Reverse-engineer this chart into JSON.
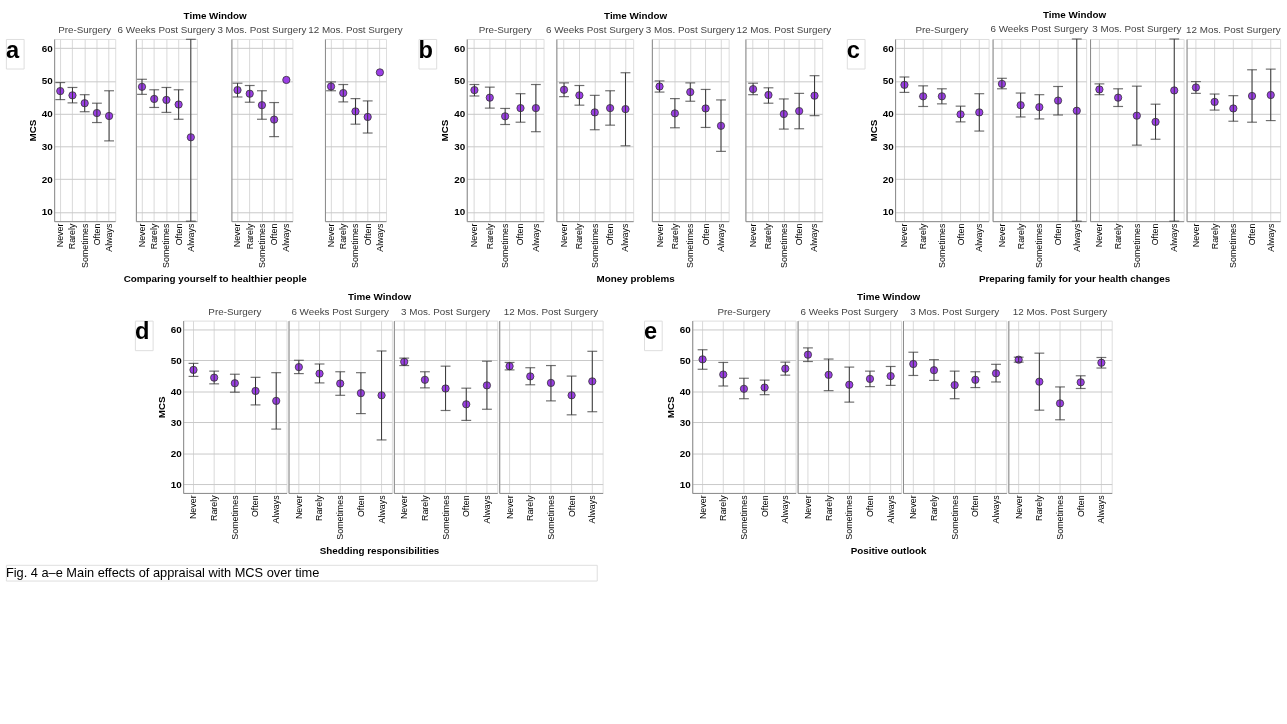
{
  "chart_data": [
    {
      "type": "scatter",
      "title": "Pre-Surgery",
      "ylabel": "MCS",
      "annotations": [
        "a",
        "Time Window",
        "Fig. 4 a–e Main effects of appraisal with MCS over time"
      ],
      "xlabel": "Comparing yourself to healthier people",
      "categories": [
        "Never",
        "Rarely",
        "Sometimes",
        "Often",
        "Always"
      ],
      "series": [
        {
          "color": "#9b3ee6",
          "values": [
            46.9,
            45.6,
            43.2,
            40.2,
            39.3
          ],
          "errors": [
            [
              44.3,
              49.5
            ],
            [
              43.3,
              48.0
            ],
            [
              40.6,
              45.8
            ],
            [
              37.3,
              43.2
            ],
            [
              31.7,
              47.0
            ]
          ]
        }
      ],
      "ylim": [
        7.2,
        62.8
      ],
      "yticks": [
        10,
        20,
        30,
        40,
        50,
        60
      ],
      "grid": true,
      "marker": "circle"
    },
    {
      "type": "scatter",
      "title": "6 Weeks Post Surgery",
      "categories": [
        "Never",
        "Rarely",
        "Sometimes",
        "Often",
        "Always"
      ],
      "series": [
        {
          "color": "#9b3ee6",
          "values": [
            48.2,
            44.5,
            44.2,
            42.8,
            32.8
          ],
          "errors": [
            [
              45.9,
              50.5
            ],
            [
              41.9,
              47.3
            ],
            [
              40.4,
              48.0
            ],
            [
              38.3,
              47.3
            ],
            [
              7.2,
              62.7
            ]
          ]
        }
      ],
      "ylim": [
        7.2,
        62.8
      ],
      "yticks": [
        10,
        20,
        30,
        40,
        50,
        60
      ],
      "grid": true,
      "marker": "circle",
      "tick_labels": "x"
    },
    {
      "type": "scatter",
      "title": "3 Mos. Post Surgery",
      "categories": [
        "Never",
        "Rarely",
        "Sometimes",
        "Often",
        "Always"
      ],
      "series": [
        {
          "color": "#9b3ee6",
          "values": [
            47.2,
            46.1,
            42.6,
            38.2,
            50.3
          ],
          "errors": [
            [
              45.1,
              49.3
            ],
            [
              43.5,
              48.6
            ],
            [
              38.3,
              47.0
            ],
            [
              33.0,
              43.4
            ],
            null
          ]
        }
      ],
      "ylim": [
        7.2,
        62.8
      ],
      "yticks": [
        10,
        20,
        30,
        40,
        50,
        60
      ],
      "grid": true,
      "marker": "circle",
      "tick_labels": "x"
    },
    {
      "type": "scatter",
      "title": "12 Mos. Post Surgery",
      "categories": [
        "Never",
        "Rarely",
        "Sometimes",
        "Often",
        "Always"
      ],
      "series": [
        {
          "color": "#9b3ee6",
          "values": [
            48.3,
            46.3,
            40.7,
            39.0,
            52.6
          ],
          "errors": [
            [
              47.0,
              49.7
            ],
            [
              43.6,
              48.9
            ],
            [
              36.8,
              44.6
            ],
            [
              34.1,
              43.9
            ],
            null
          ]
        }
      ],
      "ylim": [
        7.2,
        62.8
      ],
      "yticks": [
        10,
        20,
        30,
        40,
        50,
        60
      ],
      "grid": true,
      "marker": "circle",
      "tick_labels": "x"
    },
    {
      "type": "scatter",
      "title": "Pre-Surgery",
      "ylabel": "MCS",
      "annotations": [
        "b",
        "Time Window"
      ],
      "xlabel": "Money problems",
      "categories": [
        "Never",
        "Rarely",
        "Sometimes",
        "Often",
        "Always"
      ],
      "series": [
        {
          "color": "#9b3ee6",
          "values": [
            47.2,
            44.9,
            39.2,
            41.7,
            41.7
          ],
          "errors": [
            [
              45.4,
              48.9
            ],
            [
              41.7,
              48.1
            ],
            [
              36.7,
              41.6
            ],
            [
              37.4,
              46.1
            ],
            [
              34.5,
              48.9
            ]
          ]
        }
      ],
      "ylim": [
        7.2,
        62.8
      ],
      "yticks": [
        10,
        20,
        30,
        40,
        50,
        60
      ],
      "grid": true,
      "marker": "circle"
    },
    {
      "type": "scatter",
      "title": "6 Weeks Post Surgery",
      "categories": [
        "Never",
        "Rarely",
        "Sometimes",
        "Often",
        "Always"
      ],
      "series": [
        {
          "color": "#9b3ee6",
          "values": [
            47.3,
            45.6,
            40.4,
            41.7,
            41.4
          ],
          "errors": [
            [
              45.2,
              49.4
            ],
            [
              42.6,
              48.6
            ],
            [
              35.1,
              45.6
            ],
            [
              36.5,
              47.0
            ],
            [
              30.2,
              52.5
            ]
          ]
        }
      ],
      "ylim": [
        7.2,
        62.8
      ],
      "yticks": [
        10,
        20,
        30,
        40,
        50,
        60
      ],
      "grid": true,
      "marker": "circle",
      "tick_labels": "x"
    },
    {
      "type": "scatter",
      "title": "3 Mos. Post Surgery",
      "categories": [
        "Never",
        "Rarely",
        "Sometimes",
        "Often",
        "Always"
      ],
      "series": [
        {
          "color": "#9b3ee6",
          "values": [
            48.3,
            40.1,
            46.6,
            41.6,
            36.3
          ],
          "errors": [
            [
              46.6,
              50.0
            ],
            [
              35.7,
              44.6
            ],
            [
              43.8,
              49.4
            ],
            [
              35.8,
              47.4
            ],
            [
              28.5,
              44.2
            ]
          ]
        }
      ],
      "ylim": [
        7.2,
        62.8
      ],
      "yticks": [
        10,
        20,
        30,
        40,
        50,
        60
      ],
      "grid": true,
      "marker": "circle",
      "tick_labels": "x"
    },
    {
      "type": "scatter",
      "title": "12 Mos. Post Surgery",
      "categories": [
        "Never",
        "Rarely",
        "Sometimes",
        "Often",
        "Always"
      ],
      "series": [
        {
          "color": "#9b3ee6",
          "values": [
            47.5,
            45.7,
            39.9,
            40.8,
            45.5
          ],
          "errors": [
            [
              45.8,
              49.3
            ],
            [
              43.2,
              47.9
            ],
            [
              35.3,
              44.5
            ],
            [
              35.4,
              46.2
            ],
            [
              39.4,
              51.6
            ]
          ]
        }
      ],
      "ylim": [
        7.2,
        62.8
      ],
      "yticks": [
        10,
        20,
        30,
        40,
        50,
        60
      ],
      "grid": true,
      "marker": "circle",
      "tick_labels": "x"
    },
    {
      "type": "scatter",
      "title": "Pre-Surgery",
      "ylabel": "MCS",
      "annotations": [
        "c",
        "Time Window"
      ],
      "xlabel": "Preparing family for your health changes",
      "categories": [
        "Never",
        "Rarely",
        "Sometimes",
        "Often",
        "Always"
      ],
      "series": [
        {
          "color": "#9b3ee6",
          "values": [
            48.8,
            45.3,
            45.3,
            39.8,
            40.4
          ],
          "errors": [
            [
              46.5,
              51.2
            ],
            [
              42.2,
              48.5
            ],
            [
              43.0,
              47.6
            ],
            [
              37.5,
              42.3
            ],
            [
              34.7,
              46.1
            ]
          ]
        }
      ],
      "ylim": [
        7.2,
        62.8
      ],
      "yticks": [
        10,
        20,
        30,
        40,
        50,
        60
      ],
      "grid": true,
      "marker": "circle"
    },
    {
      "type": "scatter",
      "title": "6 Weeks Post Surgery",
      "categories": [
        "Never",
        "Rarely",
        "Sometimes",
        "Often",
        "Always"
      ],
      "series": [
        {
          "color": "#9b3ee6",
          "values": [
            49.1,
            42.6,
            42.0,
            44.0,
            40.9
          ],
          "errors": [
            [
              47.6,
              50.8
            ],
            [
              39.0,
              46.3
            ],
            [
              38.4,
              45.8
            ],
            [
              39.6,
              48.3
            ],
            [
              7.2,
              62.8
            ]
          ]
        }
      ],
      "ylim": [
        7.2,
        62.8
      ],
      "yticks": [
        10,
        20,
        30,
        40,
        50,
        60
      ],
      "grid": true,
      "marker": "circle",
      "tick_labels": "x"
    },
    {
      "type": "scatter",
      "title": "3 Mos. Post Surgery",
      "categories": [
        "Never",
        "Rarely",
        "Sometimes",
        "Often",
        "Always"
      ],
      "series": [
        {
          "color": "#9b3ee6",
          "values": [
            47.4,
            44.9,
            39.4,
            37.5,
            47.1
          ],
          "errors": [
            [
              45.8,
              49.1
            ],
            [
              42.2,
              47.6
            ],
            [
              30.4,
              48.4
            ],
            [
              32.2,
              42.9
            ],
            [
              7.2,
              62.8
            ]
          ]
        }
      ],
      "ylim": [
        7.2,
        62.8
      ],
      "yticks": [
        10,
        20,
        30,
        40,
        50,
        60
      ],
      "grid": true,
      "marker": "circle",
      "tick_labels": "x"
    },
    {
      "type": "scatter",
      "title": "12 Mos. Post Surgery",
      "categories": [
        "Never",
        "Rarely",
        "Sometimes",
        "Often",
        "Always"
      ],
      "series": [
        {
          "color": "#9b3ee6",
          "values": [
            48.0,
            43.6,
            41.6,
            45.4,
            45.7
          ],
          "errors": [
            [
              46.2,
              49.8
            ],
            [
              41.1,
              46.0
            ],
            [
              37.7,
              45.5
            ],
            [
              37.4,
              53.4
            ],
            [
              37.9,
              53.6
            ]
          ]
        }
      ],
      "ylim": [
        7.2,
        62.8
      ],
      "yticks": [
        10,
        20,
        30,
        40,
        50,
        60
      ],
      "grid": true,
      "marker": "circle",
      "tick_labels": "x"
    },
    {
      "type": "scatter",
      "title": "Pre-Surgery",
      "ylabel": "MCS",
      "annotations": [
        "d",
        "Time Window"
      ],
      "xlabel": "Shedding responsibilities",
      "categories": [
        "Never",
        "Rarely",
        "Sometimes",
        "Often",
        "Always"
      ],
      "series": [
        {
          "color": "#9b3ee6",
          "values": [
            46.9,
            44.4,
            42.6,
            40.1,
            36.9
          ],
          "errors": [
            [
              44.8,
              49.0
            ],
            [
              42.4,
              46.5
            ],
            [
              39.7,
              45.5
            ],
            [
              35.6,
              44.5
            ],
            [
              27.8,
              46.0
            ]
          ]
        }
      ],
      "ylim": [
        7.2,
        62.8
      ],
      "yticks": [
        10,
        20,
        30,
        40,
        50,
        60
      ],
      "grid": true,
      "marker": "circle"
    },
    {
      "type": "scatter",
      "title": "6 Weeks Post Surgery",
      "categories": [
        "Never",
        "Rarely",
        "Sometimes",
        "Often",
        "Always"
      ],
      "series": [
        {
          "color": "#9b3ee6",
          "values": [
            47.8,
            45.7,
            42.5,
            39.4,
            38.7
          ],
          "errors": [
            [
              45.7,
              50.0
            ],
            [
              42.7,
              48.8
            ],
            [
              38.7,
              46.3
            ],
            [
              32.8,
              46.0
            ],
            [
              24.3,
              53.0
            ]
          ]
        }
      ],
      "ylim": [
        7.2,
        62.8
      ],
      "yticks": [
        10,
        20,
        30,
        40,
        50,
        60
      ],
      "grid": true,
      "marker": "circle",
      "tick_labels": "x"
    },
    {
      "type": "scatter",
      "title": "3 Mos. Post Surgery",
      "categories": [
        "Never",
        "Rarely",
        "Sometimes",
        "Often",
        "Always"
      ],
      "series": [
        {
          "color": "#9b3ee6",
          "values": [
            49.5,
            43.7,
            40.9,
            35.8,
            41.9
          ],
          "errors": [
            [
              48.3,
              50.7
            ],
            [
              41.1,
              46.3
            ],
            [
              33.8,
              48.1
            ],
            [
              30.6,
              41.0
            ],
            [
              34.2,
              49.7
            ]
          ]
        }
      ],
      "ylim": [
        7.2,
        62.8
      ],
      "yticks": [
        10,
        20,
        30,
        40,
        50,
        60
      ],
      "grid": true,
      "marker": "circle",
      "tick_labels": "x"
    },
    {
      "type": "scatter",
      "title": "12 Mos. Post Surgery",
      "categories": [
        "Never",
        "Rarely",
        "Sometimes",
        "Often",
        "Always"
      ],
      "series": [
        {
          "color": "#9b3ee6",
          "values": [
            48.1,
            44.8,
            42.7,
            38.7,
            43.2
          ],
          "errors": [
            [
              46.9,
              49.3
            ],
            [
              42.1,
              47.6
            ],
            [
              36.9,
              48.3
            ],
            [
              32.4,
              44.9
            ],
            [
              33.4,
              52.9
            ]
          ]
        }
      ],
      "ylim": [
        7.2,
        62.8
      ],
      "yticks": [
        10,
        20,
        30,
        40,
        50,
        60
      ],
      "grid": true,
      "marker": "circle",
      "tick_labels": "x"
    },
    {
      "type": "scatter",
      "title": "Pre-Surgery",
      "ylabel": "MCS",
      "annotations": [
        "e",
        "Time Window"
      ],
      "xlabel": "Positive outlook",
      "categories": [
        "Never",
        "Rarely",
        "Sometimes",
        "Often",
        "Always"
      ],
      "series": [
        {
          "color": "#9b3ee6",
          "values": [
            50.3,
            45.4,
            40.8,
            41.2,
            47.3
          ],
          "errors": [
            [
              47.1,
              53.4
            ],
            [
              41.7,
              49.3
            ],
            [
              37.6,
              44.2
            ],
            [
              38.9,
              43.6
            ],
            [
              45.2,
              49.4
            ]
          ]
        }
      ],
      "ylim": [
        7.2,
        62.8
      ],
      "yticks": [
        10,
        20,
        30,
        40,
        50,
        60
      ],
      "grid": true,
      "marker": "circle"
    },
    {
      "type": "scatter",
      "title": "6 Weeks Post Surgery",
      "categories": [
        "Never",
        "Rarely",
        "Sometimes",
        "Often",
        "Always"
      ],
      "series": [
        {
          "color": "#9b3ee6",
          "values": [
            51.8,
            45.3,
            42.1,
            44.0,
            44.9
          ],
          "errors": [
            [
              49.6,
              54.0
            ],
            [
              40.2,
              50.4
            ],
            [
              36.5,
              47.8
            ],
            [
              41.5,
              46.5
            ],
            [
              41.9,
              48.0
            ]
          ]
        }
      ],
      "ylim": [
        7.2,
        62.8
      ],
      "yticks": [
        10,
        20,
        30,
        40,
        50,
        60
      ],
      "grid": true,
      "marker": "circle",
      "tick_labels": "x"
    },
    {
      "type": "scatter",
      "title": "3 Mos. Post Surgery",
      "categories": [
        "Never",
        "Rarely",
        "Sometimes",
        "Often",
        "Always"
      ],
      "series": [
        {
          "color": "#9b3ee6",
          "values": [
            48.8,
            46.8,
            42.0,
            43.7,
            45.8
          ],
          "errors": [
            [
              45.1,
              52.6
            ],
            [
              43.5,
              50.2
            ],
            [
              37.6,
              46.5
            ],
            [
              41.2,
              46.3
            ],
            [
              43.0,
              48.7
            ]
          ]
        }
      ],
      "ylim": [
        7.2,
        62.8
      ],
      "yticks": [
        10,
        20,
        30,
        40,
        50,
        60
      ],
      "grid": true,
      "marker": "circle",
      "tick_labels": "x"
    },
    {
      "type": "scatter",
      "title": "12 Mos. Post Surgery",
      "categories": [
        "Never",
        "Rarely",
        "Sometimes",
        "Often",
        "Always"
      ],
      "series": [
        {
          "color": "#9b3ee6",
          "values": [
            50.2,
            43.1,
            36.1,
            42.9,
            49.2
          ],
          "errors": [
            [
              49.4,
              51.0
            ],
            [
              33.9,
              52.3
            ],
            [
              30.8,
              41.4
            ],
            [
              40.9,
              45.0
            ],
            [
              47.5,
              50.9
            ]
          ]
        }
      ],
      "ylim": [
        7.2,
        62.8
      ],
      "yticks": [
        10,
        20,
        30,
        40,
        50,
        60
      ],
      "grid": true,
      "marker": "circle",
      "tick_labels": "x"
    }
  ]
}
